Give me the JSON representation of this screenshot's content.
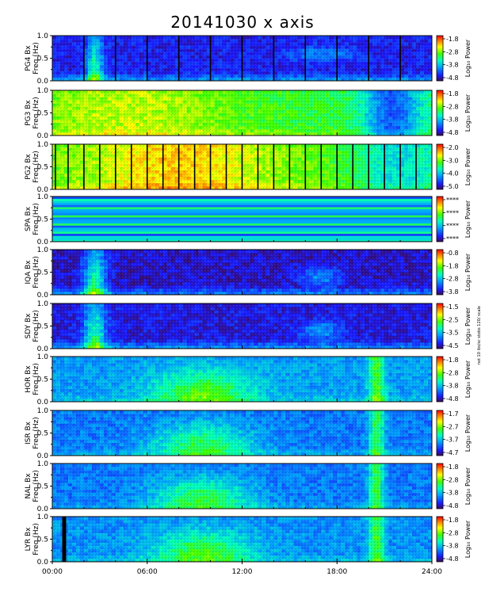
{
  "title": "20141030 x axis",
  "chart_data": {
    "type": "heatmap",
    "title": "20141030 x axis",
    "xlabel": "",
    "xlim": [
      "00:00",
      "24:00"
    ],
    "x_ticks": [
      "00:00",
      "06:00",
      "12:00",
      "18:00",
      "24:00"
    ],
    "y_ticks": [
      "0.0",
      "0.5",
      "1.0"
    ],
    "ylim_hz": [
      0.0,
      1.0
    ],
    "colorbar_label": "Log₁₀ Power",
    "colormap": "rainbow",
    "panels": [
      {
        "station_label": "PG4 Bx",
        "freq_label": "Freq (Hz)",
        "cb_ticks": [
          "-1.8",
          "-2.8",
          "-3.8",
          "-4.8"
        ],
        "base_level": 0.12,
        "black_gaps": [
          2.0,
          4.0,
          6.0,
          8.0,
          10.0,
          12.0,
          14.0,
          16.0,
          18.0,
          20.0,
          22.0
        ]
      },
      {
        "station_label": "PG3 Bx",
        "freq_label": "Freq (Hz)",
        "cb_ticks": [
          "-1.8",
          "-2.8",
          "-3.8",
          "-4.8"
        ],
        "base_level": 0.55,
        "black_gaps": []
      },
      {
        "station_label": "PG2 Bx",
        "freq_label": "Freq (Hz)",
        "cb_ticks": [
          "-2.0",
          "-3.0",
          "-4.0",
          "-5.0"
        ],
        "base_level": 0.6,
        "black_gaps": [
          0.2,
          1.0,
          2.0,
          3.0,
          4.0,
          5.0,
          6.0,
          7.0,
          8.0,
          9.0,
          10.0,
          11.0,
          12.0,
          13.0,
          14.0,
          15.0,
          16.0,
          17.0,
          18.0,
          19.0,
          20.0,
          21.0,
          22.0,
          23.0
        ]
      },
      {
        "station_label": "SPA Bx",
        "freq_label": "Freq (Hz)",
        "cb_ticks": [
          "****",
          "****",
          "****",
          "****"
        ],
        "base_level": 0.4,
        "black_gaps": []
      },
      {
        "station_label": "IQA Bx",
        "freq_label": "Freq (Hz)",
        "cb_ticks": [
          "-0.8",
          "-1.8",
          "-2.8",
          "-3.8"
        ],
        "base_level": 0.08,
        "black_gaps": []
      },
      {
        "station_label": "SDY Bx",
        "freq_label": "Freq (Hz)",
        "cb_ticks": [
          "-1.5",
          "-2.5",
          "-3.5",
          "-4.5"
        ],
        "base_level": 0.1,
        "black_gaps": []
      },
      {
        "station_label": "HOR Bx",
        "freq_label": "Freq (Hz)",
        "cb_ticks": [
          "-1.8",
          "-2.8",
          "-3.8",
          "-4.8"
        ],
        "base_level": 0.3,
        "black_gaps": []
      },
      {
        "station_label": "ISR Bx",
        "freq_label": "Freq (Hz)",
        "cb_ticks": [
          "-1.7",
          "-2.7",
          "-3.7",
          "-4.7"
        ],
        "base_level": 0.25,
        "black_gaps": []
      },
      {
        "station_label": "NAL Bx",
        "freq_label": "Freq (Hz)",
        "cb_ticks": [
          "-1.8",
          "-2.8",
          "-3.8",
          "-4.8"
        ],
        "base_level": 0.25,
        "black_gaps": []
      },
      {
        "station_label": "LYR Bx",
        "freq_label": "Freq (Hz)",
        "cb_ticks": [
          "-1.8",
          "-2.8",
          "-3.8",
          "-4.8"
        ],
        "base_level": 0.28,
        "black_gaps": [
          0.75
        ]
      }
    ],
    "side_note": "not 10 ibs/sc stobs 120/ scale"
  }
}
